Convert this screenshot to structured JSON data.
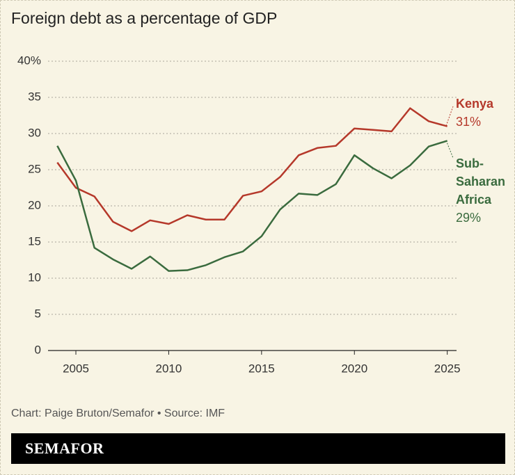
{
  "chart_data": {
    "type": "line",
    "title": "Foreign debt as a percentage of GDP",
    "x": [
      2004,
      2005,
      2006,
      2007,
      2008,
      2009,
      2010,
      2011,
      2012,
      2013,
      2014,
      2015,
      2016,
      2017,
      2018,
      2019,
      2020,
      2021,
      2022,
      2023,
      2024,
      2025
    ],
    "series": [
      {
        "name": "Kenya",
        "color": "#b5382a",
        "label": "31%",
        "values": [
          26.0,
          22.5,
          21.3,
          17.8,
          16.5,
          18.0,
          17.5,
          18.7,
          18.1,
          18.1,
          21.4,
          22.0,
          24.0,
          27.0,
          28.0,
          28.3,
          30.7,
          30.5,
          30.3,
          33.5,
          31.7,
          31.0
        ]
      },
      {
        "name": "Sub-Saharan Africa",
        "color": "#3a6b3e",
        "label": "29%",
        "values": [
          28.3,
          23.5,
          14.2,
          12.6,
          11.3,
          13.0,
          11.0,
          11.1,
          11.8,
          12.9,
          13.7,
          15.8,
          19.5,
          21.7,
          21.5,
          23.0,
          27.0,
          25.2,
          23.8,
          25.6,
          28.2,
          29.0
        ]
      }
    ],
    "xlim": [
      2003.5,
      2025.5
    ],
    "xticks": [
      2005,
      2010,
      2015,
      2020,
      2025
    ],
    "ylim": [
      0,
      40
    ],
    "yticks": [
      0,
      5,
      10,
      15,
      20,
      25,
      30,
      35,
      {
        "value": 40,
        "label": "40%"
      }
    ],
    "grid": true,
    "source": "Chart: Paige Bruton/Semafor • Source: IMF",
    "brand": "SEMAFOR"
  }
}
